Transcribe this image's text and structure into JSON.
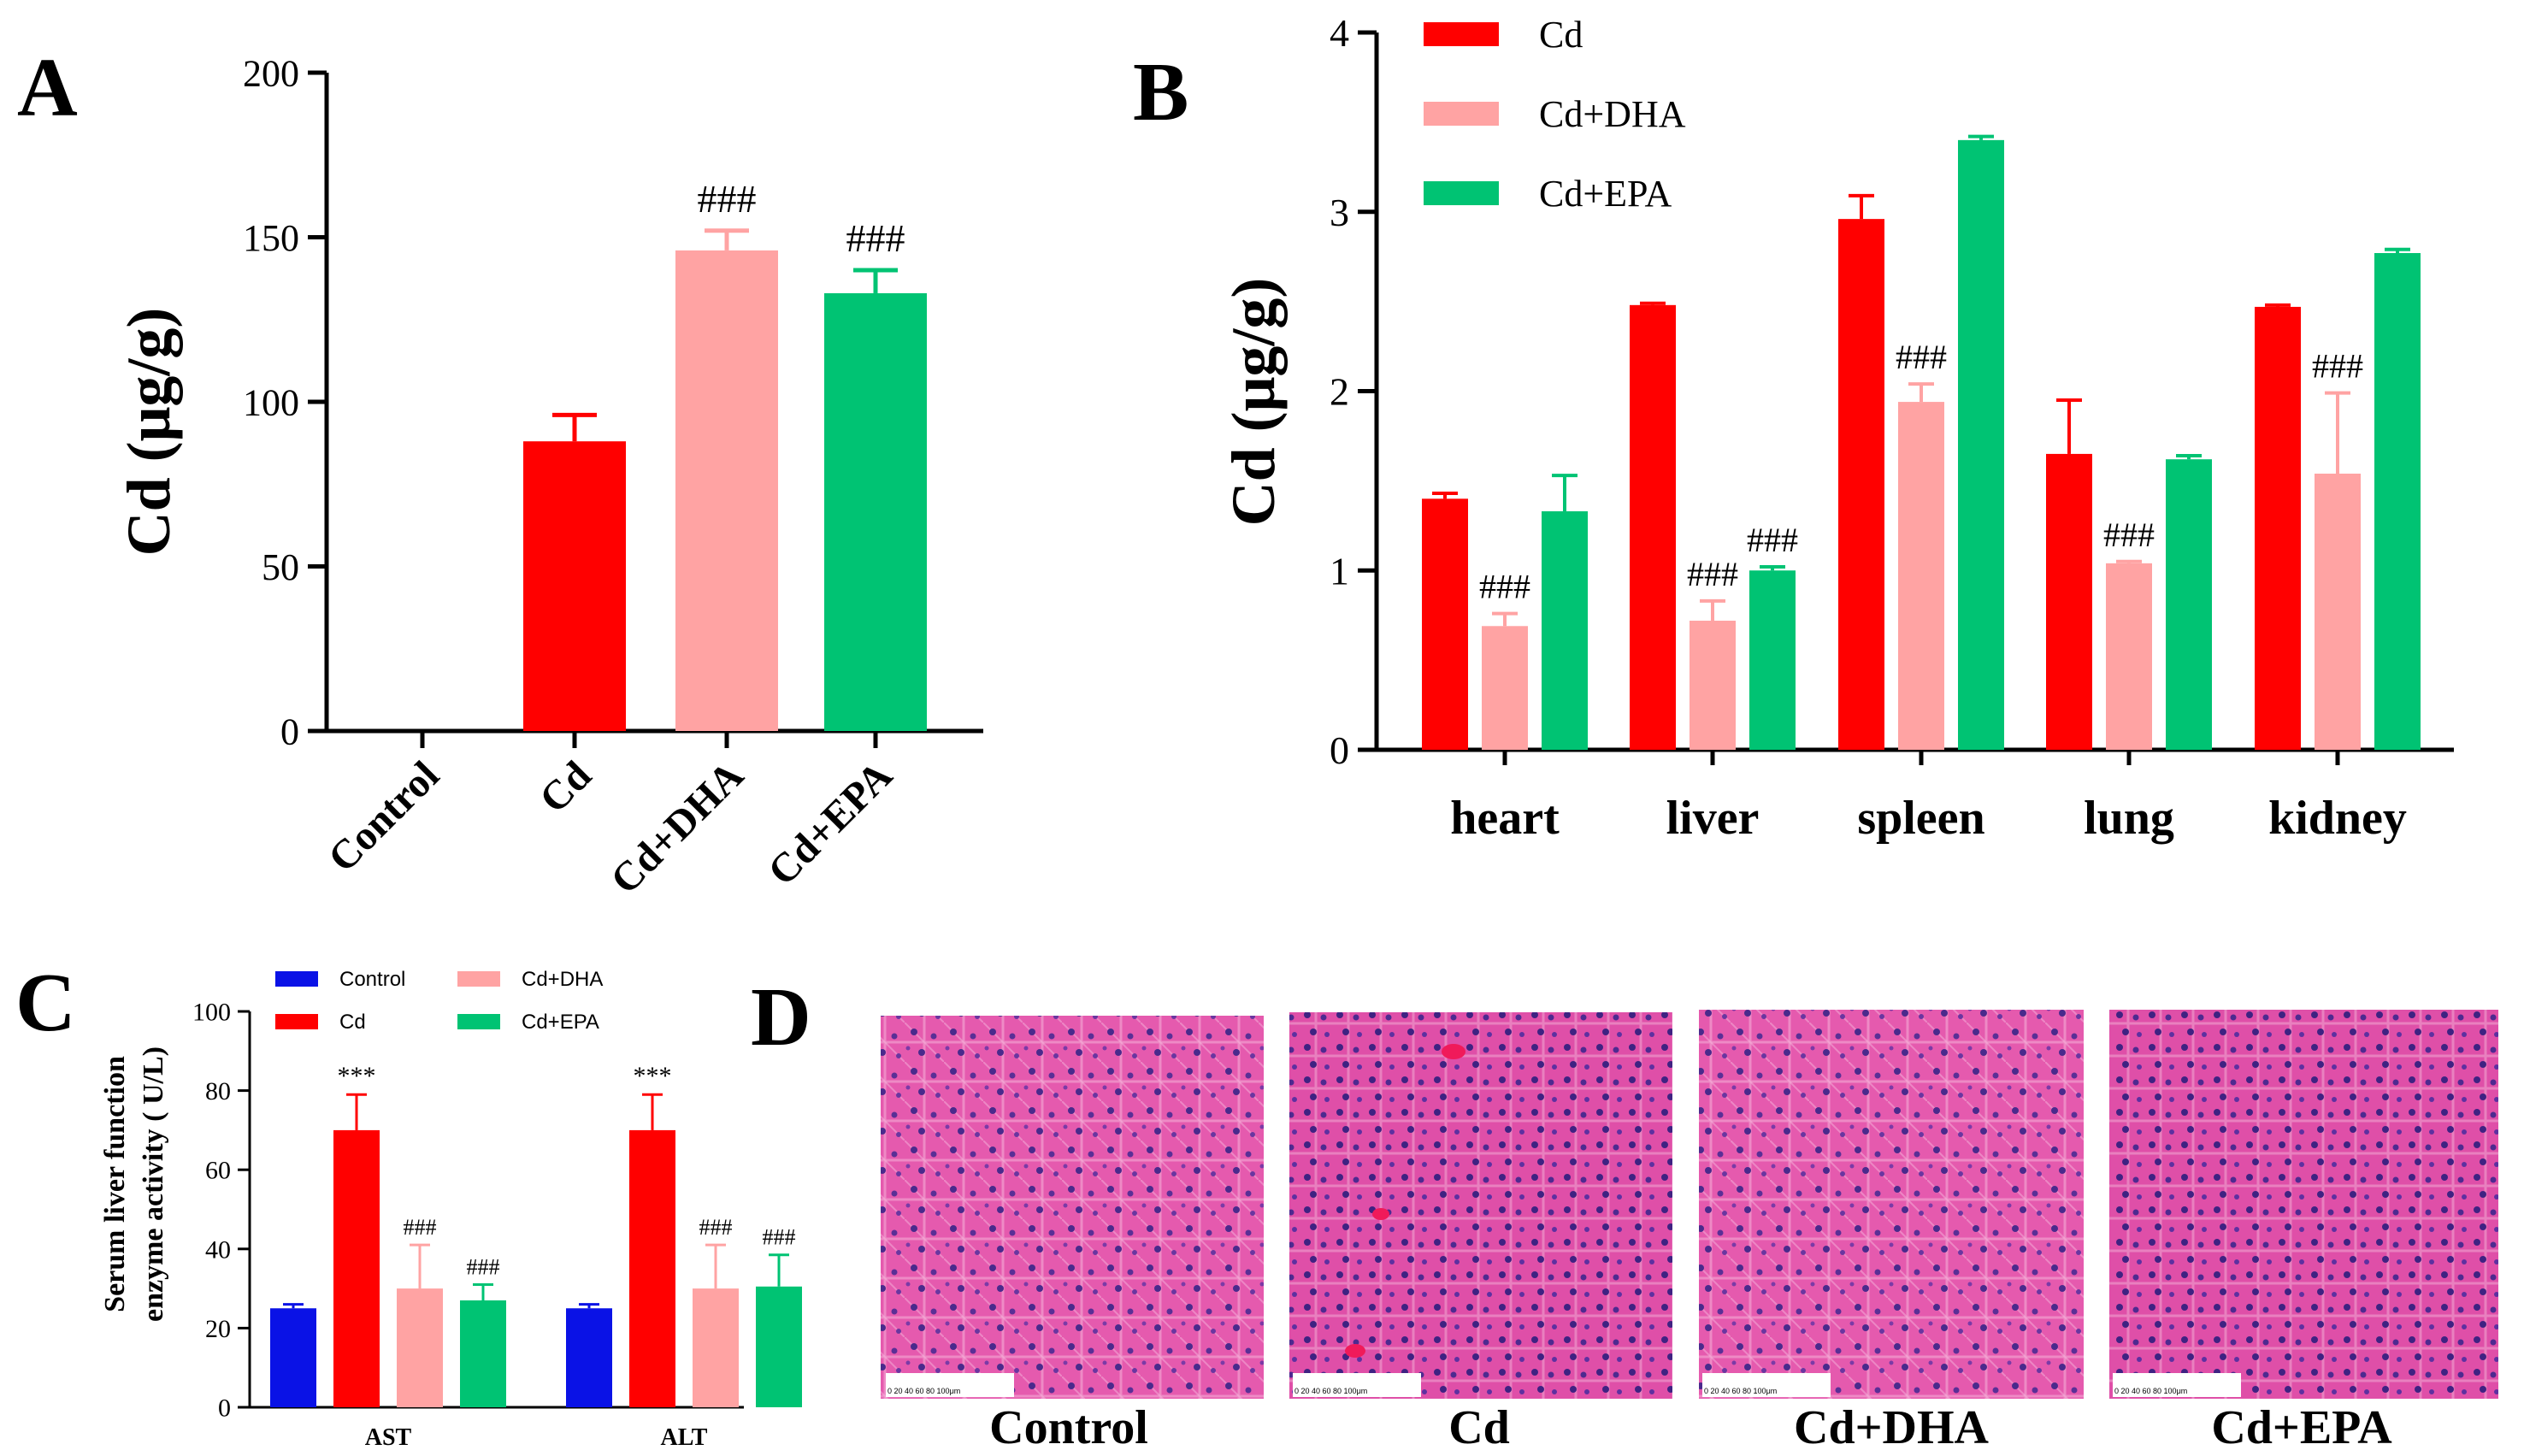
{
  "colors": {
    "Control": "#0A12E6",
    "Cd": "#FF0000",
    "Cd+DHA": "#FFA3A3",
    "Cd+EPA": "#00C373"
  },
  "chart_data": [
    {
      "panel": "A",
      "type": "bar",
      "ylabel": "Cd (μg/g)",
      "ylim": [
        0,
        200
      ],
      "yticks": [
        "0",
        "50",
        "100",
        "150",
        "200"
      ],
      "categories": [
        "Control",
        "Cd",
        "Cd+DHA",
        "Cd+EPA"
      ],
      "values": [
        0,
        88,
        146,
        133
      ],
      "errors": [
        0,
        8,
        6,
        7
      ],
      "annotations": [
        "",
        "",
        "###",
        "###"
      ]
    },
    {
      "panel": "B",
      "type": "bar",
      "ylabel": "Cd (μg/g)",
      "ylim": [
        0,
        4
      ],
      "yticks": [
        "0",
        "1",
        "2",
        "3",
        "4"
      ],
      "categories": [
        "heart",
        "liver",
        "spleen",
        "lung",
        "kidney"
      ],
      "series": [
        {
          "name": "Cd",
          "values": [
            1.4,
            2.48,
            2.96,
            1.65,
            2.47
          ],
          "errors": [
            0.03,
            0.01,
            0.13,
            0.3,
            0.01
          ],
          "annotations": [
            "",
            "",
            "",
            "",
            ""
          ]
        },
        {
          "name": "Cd+DHA",
          "values": [
            0.69,
            0.72,
            1.94,
            1.04,
            1.54
          ],
          "errors": [
            0.07,
            0.11,
            0.1,
            0.01,
            0.45
          ],
          "annotations": [
            "###",
            "###",
            "###",
            "###",
            "###"
          ]
        },
        {
          "name": "Cd+EPA",
          "values": [
            1.33,
            1.0,
            3.4,
            1.62,
            2.77
          ],
          "errors": [
            0.2,
            0.02,
            0.02,
            0.02,
            0.02
          ],
          "annotations": [
            "",
            "###",
            "",
            "",
            ""
          ]
        }
      ],
      "legend": [
        "Cd",
        "Cd+DHA",
        "Cd+EPA"
      ]
    },
    {
      "panel": "C",
      "type": "bar",
      "ylabel_line1": "Serum liver function",
      "ylabel_line2": "enzyme activity ( U/L)",
      "ylim": [
        0,
        100
      ],
      "yticks": [
        "0",
        "20",
        "40",
        "60",
        "80",
        "100"
      ],
      "categories": [
        "AST",
        "ALT"
      ],
      "series": [
        {
          "name": "Control",
          "values": [
            25,
            25
          ],
          "errors": [
            1,
            1
          ],
          "annotations": [
            "",
            ""
          ]
        },
        {
          "name": "Cd",
          "values": [
            70,
            70
          ],
          "errors": [
            9,
            9
          ],
          "annotations": [
            "***",
            "***"
          ]
        },
        {
          "name": "Cd+DHA",
          "values": [
            30,
            30
          ],
          "errors": [
            11,
            11
          ],
          "annotations": [
            "###",
            "###"
          ]
        },
        {
          "name": "Cd+EPA",
          "values": [
            27,
            30.5
          ],
          "errors": [
            4,
            8
          ],
          "annotations": [
            "###",
            "###"
          ]
        }
      ],
      "legend": [
        "Control",
        "Cd",
        "Cd+DHA",
        "Cd+EPA"
      ]
    }
  ],
  "panel_labels": {
    "A": "A",
    "B": "B",
    "C": "C",
    "D": "D"
  },
  "micrographs": {
    "labels": [
      "Control",
      "Cd",
      "Cd+DHA",
      "Cd+EPA"
    ],
    "scale_bar": "0  20 40 60 80 100μm"
  }
}
